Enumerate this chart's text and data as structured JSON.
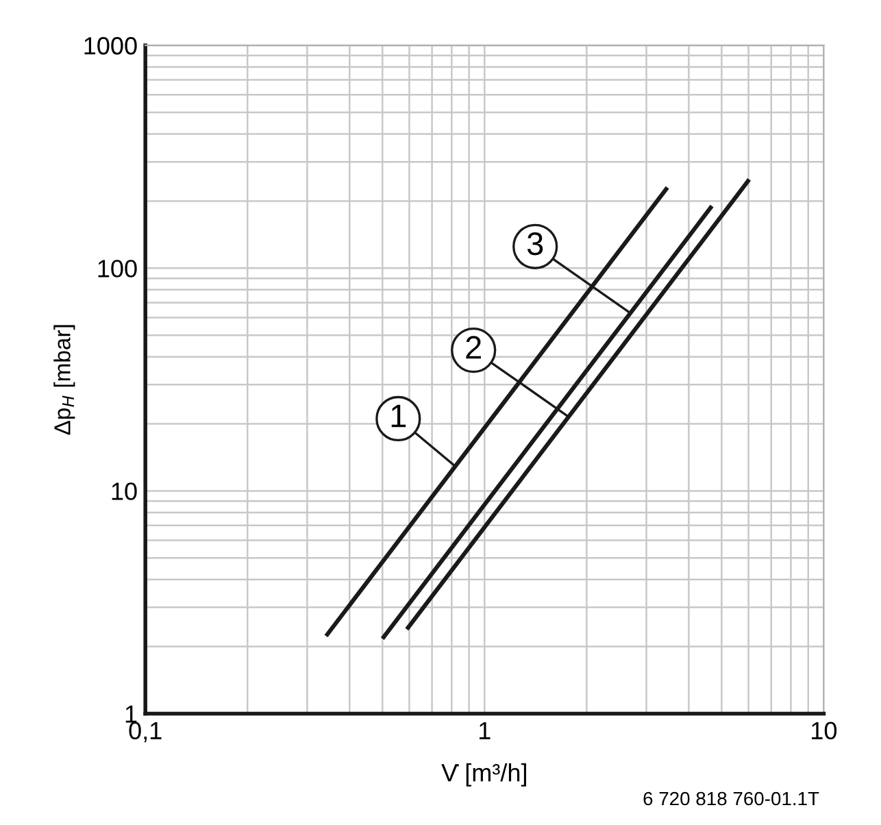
{
  "chart_data": {
    "type": "line",
    "log": "xy",
    "xlabel": "V̇ [m³/h]",
    "ylabel": "Δp$_{H}$ [mbar]",
    "xlim": [
      0.1,
      10
    ],
    "ylim": [
      1,
      1000
    ],
    "xticks": [
      {
        "value": 0.1,
        "label": "0,1"
      },
      1,
      10
    ],
    "yticks": [
      1,
      10,
      100,
      1000
    ],
    "grid": true,
    "line_style": "solid",
    "marker": "none",
    "series": [
      {
        "color": "#1a1a1a",
        "x": [
          0.341,
          3.46
        ],
        "values": [
          2.23,
          230
        ]
      },
      {
        "color": "#1a1a1a",
        "x": [
          0.5,
          4.68
        ],
        "values": [
          2.17,
          190
        ]
      },
      {
        "color": "#1a1a1a",
        "x": [
          0.59,
          6.03
        ],
        "values": [
          2.39,
          250
        ]
      }
    ],
    "annotations": [
      {
        "text": "1",
        "x": 0.82,
        "y": 12.9
      },
      {
        "text": "2",
        "x": 1.77,
        "y": 21.5
      },
      {
        "text": "3",
        "x": 2.69,
        "y": 62.8
      },
      "6 720 818 760-01.1T"
    ]
  }
}
